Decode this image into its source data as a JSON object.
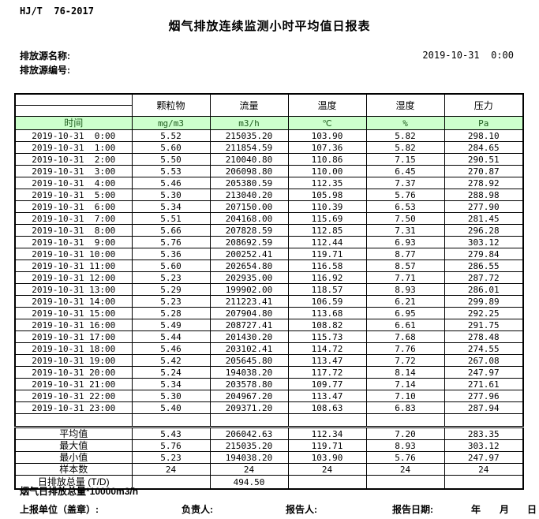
{
  "meta": {
    "standard": "HJ/T  76-2017",
    "title": "烟气排放连续监测小时平均值日报表",
    "source_name_label": "排放源名称:",
    "source_id_label": "排放源编号:",
    "datetime": "2019-10-31  0:00"
  },
  "colors": {
    "band_green": "#ccffcc",
    "band_text": "#1d5c1d",
    "border": "#000000",
    "background": "#ffffff"
  },
  "table": {
    "group_headers": [
      "",
      "颗粒物",
      "流量",
      "温度",
      "湿度",
      "压力"
    ],
    "unit_row": [
      "时间",
      "mg/m3",
      "m3/h",
      "℃",
      "%",
      "Pa"
    ],
    "rows": [
      [
        "2019-10-31  0:00",
        "5.52",
        "215035.20",
        "103.90",
        "5.82",
        "298.10"
      ],
      [
        "2019-10-31  1:00",
        "5.60",
        "211854.59",
        "107.36",
        "5.82",
        "284.65"
      ],
      [
        "2019-10-31  2:00",
        "5.50",
        "210040.80",
        "110.86",
        "7.15",
        "290.51"
      ],
      [
        "2019-10-31  3:00",
        "5.53",
        "206098.80",
        "110.00",
        "6.45",
        "270.87"
      ],
      [
        "2019-10-31  4:00",
        "5.46",
        "205380.59",
        "112.35",
        "7.37",
        "278.92"
      ],
      [
        "2019-10-31  5:00",
        "5.30",
        "213040.20",
        "105.98",
        "5.76",
        "288.98"
      ],
      [
        "2019-10-31  6:00",
        "5.34",
        "207150.00",
        "110.39",
        "6.53",
        "277.90"
      ],
      [
        "2019-10-31  7:00",
        "5.51",
        "204168.00",
        "115.69",
        "7.50",
        "281.45"
      ],
      [
        "2019-10-31  8:00",
        "5.66",
        "207828.59",
        "112.85",
        "7.31",
        "296.28"
      ],
      [
        "2019-10-31  9:00",
        "5.76",
        "208692.59",
        "112.44",
        "6.93",
        "303.12"
      ],
      [
        "2019-10-31 10:00",
        "5.36",
        "200252.41",
        "119.71",
        "8.77",
        "279.84"
      ],
      [
        "2019-10-31 11:00",
        "5.60",
        "202654.80",
        "116.58",
        "8.57",
        "286.55"
      ],
      [
        "2019-10-31 12:00",
        "5.23",
        "202935.00",
        "116.92",
        "7.71",
        "287.72"
      ],
      [
        "2019-10-31 13:00",
        "5.29",
        "199902.00",
        "118.57",
        "8.93",
        "286.01"
      ],
      [
        "2019-10-31 14:00",
        "5.23",
        "211223.41",
        "106.59",
        "6.21",
        "299.89"
      ],
      [
        "2019-10-31 15:00",
        "5.28",
        "207904.80",
        "113.68",
        "6.95",
        "292.25"
      ],
      [
        "2019-10-31 16:00",
        "5.49",
        "208727.41",
        "108.82",
        "6.61",
        "291.75"
      ],
      [
        "2019-10-31 17:00",
        "5.44",
        "201430.20",
        "115.73",
        "7.68",
        "278.48"
      ],
      [
        "2019-10-31 18:00",
        "5.46",
        "203102.41",
        "114.72",
        "7.76",
        "274.55"
      ],
      [
        "2019-10-31 19:00",
        "5.42",
        "205645.80",
        "113.47",
        "7.72",
        "267.08"
      ],
      [
        "2019-10-31 20:00",
        "5.24",
        "194038.20",
        "117.72",
        "8.14",
        "247.97"
      ],
      [
        "2019-10-31 21:00",
        "5.34",
        "203578.80",
        "109.77",
        "7.14",
        "271.61"
      ],
      [
        "2019-10-31 22:00",
        "5.30",
        "204967.20",
        "113.47",
        "7.10",
        "277.96"
      ],
      [
        "2019-10-31 23:00",
        "5.40",
        "209371.20",
        "108.63",
        "6.83",
        "287.94"
      ]
    ],
    "summary": [
      [
        "平均值",
        "5.43",
        "206042.63",
        "112.34",
        "7.20",
        "283.35"
      ],
      [
        "最大值",
        "5.76",
        "215035.20",
        "119.71",
        "8.93",
        "303.12"
      ],
      [
        "最小值",
        "5.23",
        "194038.20",
        "103.90",
        "5.76",
        "247.97"
      ],
      [
        "样本数",
        "24",
        "24",
        "24",
        "24",
        "24"
      ],
      [
        "日排放总量 (T/D)",
        "",
        "494.50",
        "",
        "",
        ""
      ]
    ]
  },
  "footer": {
    "note": "烟气日排放总量*10000m3/h",
    "report_unit": "上报单位（盖章）:",
    "responsible": "负责人:",
    "reporter": "报告人:",
    "report_date_label": "报告日期:",
    "year": "年",
    "month": "月",
    "day": "日"
  }
}
